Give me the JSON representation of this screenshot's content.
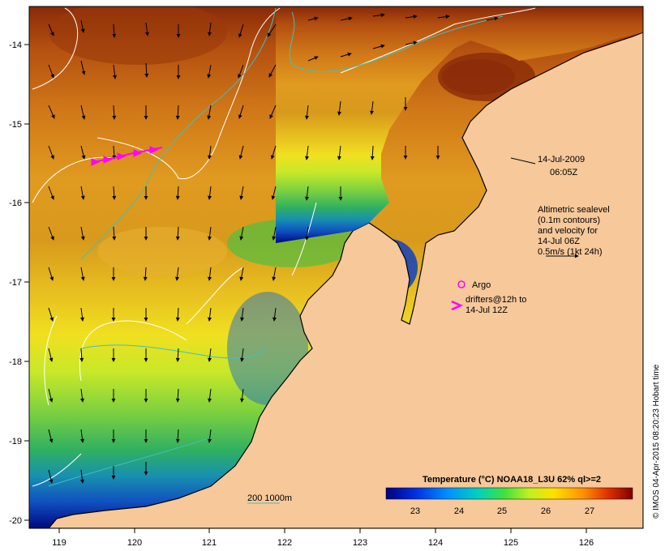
{
  "map": {
    "lon_ticks": [
      "119",
      "120",
      "121",
      "122",
      "123",
      "124",
      "125",
      "126"
    ],
    "lat_ticks": [
      "-14",
      "-15",
      "-16",
      "-17",
      "-18",
      "-19",
      "-20"
    ],
    "timestamp_line1": "14-Jul-2009",
    "timestamp_line2": "06:05Z",
    "legend_text": [
      "Altimetric sealevel",
      "(0.1m contours)",
      "and velocity for",
      "14-Jul 06Z",
      "0.5m/s (1kt 24h)"
    ],
    "argo_label": "Argo",
    "drifters_line1": "drifters@12h to",
    "drifters_line2": "14-Jul 12Z",
    "depth_label": "200  1000m",
    "colorbar_title": "Temperature (°C) NOAA18_L3U 62% ql>=2",
    "colorbar_ticks": [
      "23",
      "24",
      "25",
      "26",
      "27"
    ],
    "credit": "© IMOS 04-Apr-2015 08:20:23 Hobart time",
    "colors": {
      "land": "#f6c89a",
      "coast": "#000000",
      "contour": "#ffffff",
      "bathy": "#40c0c0",
      "drifter": "#ff00ff",
      "arrow": "#000000"
    }
  }
}
